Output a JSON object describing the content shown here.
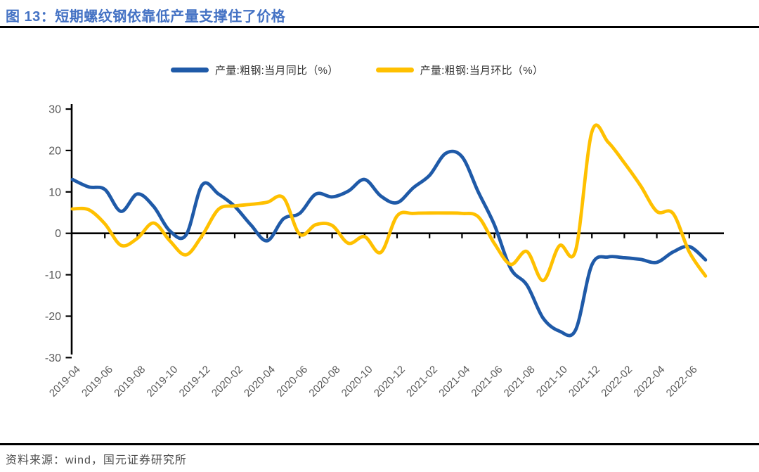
{
  "figure": {
    "title": "图 13：短期螺纹钢依靠低产量支撑住了价格",
    "source": "资料来源：wind，国元证券研究所"
  },
  "legend": {
    "items": [
      {
        "label": "产量:粗钢:当月同比（%）",
        "color": "#1F5AA8"
      },
      {
        "label": "产量:粗钢:当月环比（%）",
        "color": "#FFC000"
      }
    ]
  },
  "chart_data": {
    "type": "line",
    "title": "图 13：短期螺纹钢依靠低产量支撑住了价格",
    "xlabel": "",
    "ylabel": "",
    "ylim": [
      -30,
      30
    ],
    "y_ticks": [
      30,
      20,
      10,
      0,
      -10,
      -20,
      -30
    ],
    "grid": false,
    "legend_position": "top",
    "axis_color": "#000000",
    "tick_label_color": "#595959",
    "x": [
      "2019-04",
      "2019-05",
      "2019-06",
      "2019-07",
      "2019-08",
      "2019-09",
      "2019-10",
      "2019-11",
      "2019-12",
      "2020-01",
      "2020-02",
      "2020-03",
      "2020-04",
      "2020-05",
      "2020-06",
      "2020-07",
      "2020-08",
      "2020-09",
      "2020-10",
      "2020-11",
      "2020-12",
      "2021-01",
      "2021-02",
      "2021-03",
      "2021-04",
      "2021-05",
      "2021-06",
      "2021-07",
      "2021-08",
      "2021-09",
      "2021-10",
      "2021-11",
      "2021-12",
      "2022-01",
      "2022-02",
      "2022-03",
      "2022-04",
      "2022-05",
      "2022-06",
      "2022-07"
    ],
    "x_tick_labels": [
      "2019-04",
      "2019-06",
      "2019-08",
      "2019-10",
      "2019-12",
      "2020-02",
      "2020-04",
      "2020-06",
      "2020-08",
      "2020-10",
      "2020-12",
      "2021-02",
      "2021-04",
      "2021-06",
      "2021-08",
      "2021-10",
      "2021-12",
      "2022-02",
      "2022-04",
      "2022-06"
    ],
    "series": [
      {
        "name": "产量:粗钢:当月同比（%）",
        "color": "#1F5AA8",
        "values": [
          13.0,
          11.2,
          10.6,
          5.3,
          9.5,
          6.5,
          0.6,
          -0.4,
          11.7,
          9.5,
          6.5,
          2.0,
          -1.8,
          3.5,
          4.8,
          9.5,
          8.8,
          10.2,
          13.0,
          9.0,
          7.4,
          11.0,
          14.0,
          19.3,
          18.5,
          10.0,
          2.0,
          -8.5,
          -12.5,
          -20.5,
          -23.6,
          -23.3,
          -7.6,
          -5.7,
          -5.9,
          -6.3,
          -7.0,
          -4.5,
          -3.2,
          -6.4
        ]
      },
      {
        "name": "产量:粗钢:当月环比（%）",
        "color": "#FFC000",
        "values": [
          5.9,
          5.7,
          2.3,
          -2.9,
          -1.2,
          2.5,
          -1.8,
          -5.2,
          -0.5,
          5.8,
          6.6,
          7.0,
          7.5,
          8.6,
          -0.2,
          2.1,
          1.9,
          -2.4,
          -0.8,
          -4.6,
          4.2,
          4.8,
          4.9,
          4.9,
          4.8,
          4.0,
          -2.5,
          -7.5,
          -4.4,
          -11.4,
          -3.0,
          -4.1,
          24.5,
          22.0,
          17.0,
          11.5,
          5.3,
          4.8,
          -4.5,
          -10.3
        ]
      }
    ]
  }
}
